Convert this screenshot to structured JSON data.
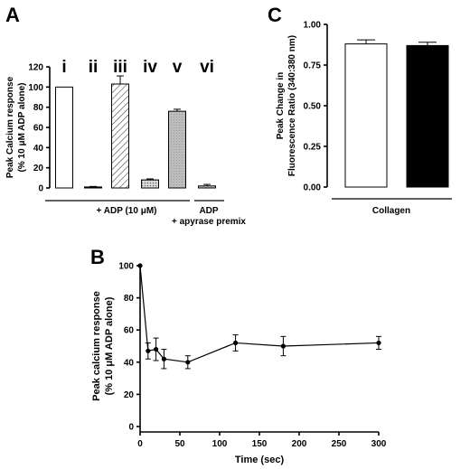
{
  "chart_data": [
    {
      "panel": "A",
      "type": "bar",
      "ylabel_line1": "Peak Calcium response",
      "ylabel_line2": "(% 10 μM ADP alone)",
      "ylim": [
        0,
        120
      ],
      "yticks": [
        0,
        20,
        40,
        60,
        80,
        100,
        120
      ],
      "categories": [
        "i",
        "ii",
        "iii",
        "iv",
        "v",
        "vi"
      ],
      "values": [
        100,
        1,
        103,
        8,
        76,
        2
      ],
      "errors": [
        0,
        0.5,
        8,
        1,
        2,
        1.5
      ],
      "fills": [
        "white",
        "black",
        "hatch",
        "dots",
        "gray",
        "cross"
      ],
      "groups": [
        {
          "label": "+ ADP (10 μM)",
          "sub": ""
        },
        {
          "label": "ADP",
          "sub": "+ apyrase premix"
        }
      ]
    },
    {
      "panel": "B",
      "type": "line",
      "xlabel": "Time (sec)",
      "ylabel_line1": "Peak calcium response",
      "ylabel_line2": "(% 10 μM ADP alone)",
      "xlim": [
        0,
        300
      ],
      "ylim": [
        0,
        100
      ],
      "xticks": [
        0,
        50,
        100,
        150,
        200,
        250,
        300
      ],
      "yticks": [
        0,
        20,
        40,
        60,
        80,
        100
      ],
      "x": [
        0,
        10,
        20,
        30,
        60,
        120,
        180,
        300
      ],
      "y": [
        100,
        47,
        48,
        42,
        40,
        52,
        50,
        52
      ],
      "errors": [
        0,
        5,
        7,
        6,
        4,
        5,
        6,
        4
      ]
    },
    {
      "panel": "C",
      "type": "bar",
      "ylabel_line1": "Peak Change in",
      "ylabel_line2": "Fluorescence Ratio (340:380 nm)",
      "ylim": [
        0,
        1.0
      ],
      "yticks": [
        "0.00",
        "0.25",
        "0.50",
        "0.75",
        "1.00"
      ],
      "values": [
        0.88,
        0.87
      ],
      "errors": [
        0.025,
        0.02
      ],
      "fills": [
        "white",
        "black"
      ],
      "group_label": "Collagen"
    }
  ]
}
